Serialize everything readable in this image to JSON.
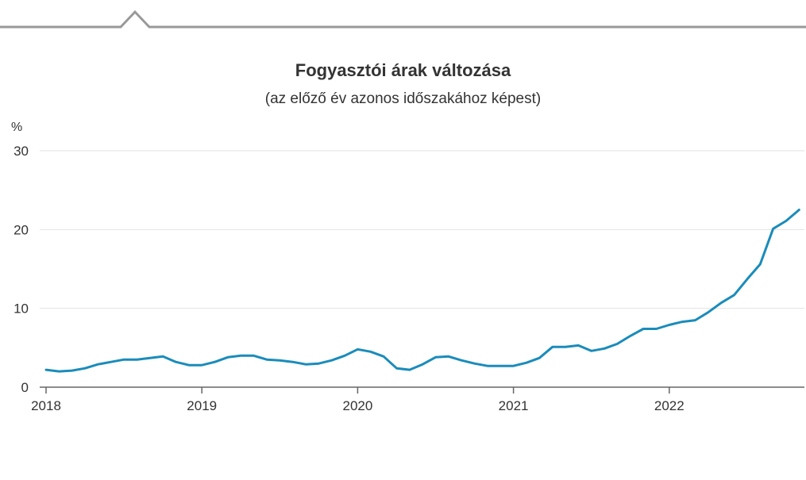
{
  "chart_data": {
    "type": "line",
    "title": "Fogyasztói árak változása",
    "subtitle": "(az előző év azonos időszakához képest)",
    "ylabel": "%",
    "xlabel": "",
    "ylim": [
      0,
      30
    ],
    "yticks": [
      "0",
      "10",
      "20",
      "30"
    ],
    "xticks": [
      "2018",
      "2019",
      "2020",
      "2021",
      "2022"
    ],
    "grid": true,
    "color": "#1a8cba",
    "x": [
      "2018-01",
      "2018-02",
      "2018-03",
      "2018-04",
      "2018-05",
      "2018-06",
      "2018-07",
      "2018-08",
      "2018-09",
      "2018-10",
      "2018-11",
      "2018-12",
      "2019-01",
      "2019-02",
      "2019-03",
      "2019-04",
      "2019-05",
      "2019-06",
      "2019-07",
      "2019-08",
      "2019-09",
      "2019-10",
      "2019-11",
      "2019-12",
      "2020-01",
      "2020-02",
      "2020-03",
      "2020-04",
      "2020-05",
      "2020-06",
      "2020-07",
      "2020-08",
      "2020-09",
      "2020-10",
      "2020-11",
      "2020-12",
      "2021-01",
      "2021-02",
      "2021-03",
      "2021-04",
      "2021-05",
      "2021-06",
      "2021-07",
      "2021-08",
      "2021-09",
      "2021-10",
      "2021-11",
      "2021-12",
      "2022-01",
      "2022-02",
      "2022-03",
      "2022-04",
      "2022-05",
      "2022-06",
      "2022-07",
      "2022-08",
      "2022-09",
      "2022-10",
      "2022-11"
    ],
    "values": [
      2.2,
      2.0,
      2.1,
      2.4,
      2.9,
      3.2,
      3.5,
      3.5,
      3.7,
      3.9,
      3.2,
      2.8,
      2.8,
      3.2,
      3.8,
      4.0,
      4.0,
      3.5,
      3.4,
      3.2,
      2.9,
      3.0,
      3.4,
      4.0,
      4.8,
      4.5,
      3.9,
      2.4,
      2.2,
      2.9,
      3.8,
      3.9,
      3.4,
      3.0,
      2.7,
      2.7,
      2.7,
      3.1,
      3.7,
      5.1,
      5.1,
      5.3,
      4.6,
      4.9,
      5.5,
      6.5,
      7.4,
      7.4,
      7.9,
      8.3,
      8.5,
      9.5,
      10.7,
      11.7,
      13.7,
      15.6,
      20.1,
      21.1,
      22.5
    ]
  }
}
